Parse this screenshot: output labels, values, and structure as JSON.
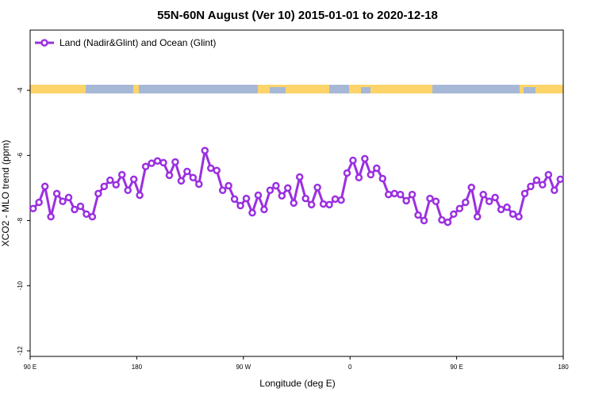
{
  "chart_data": {
    "type": "line",
    "title": "55N-60N August (Ver 10)   2015-01-01 to 2020-12-18",
    "xlabel": "Longitude (deg E)",
    "ylabel": "XCO2 - MLO trend (ppm)",
    "x": [
      92.5,
      97.5,
      102.5,
      107.5,
      112.5,
      117.5,
      122.5,
      127.5,
      132.5,
      137.5,
      142.5,
      147.5,
      152.5,
      157.5,
      162.5,
      167.5,
      172.5,
      177.5,
      182.5,
      187.5,
      192.5,
      197.5,
      202.5,
      207.5,
      212.5,
      217.5,
      222.5,
      227.5,
      232.5,
      237.5,
      242.5,
      247.5,
      252.5,
      257.5,
      262.5,
      267.5,
      272.5,
      277.5,
      282.5,
      287.5,
      292.5,
      297.5,
      302.5,
      307.5,
      312.5,
      317.5,
      322.5,
      327.5,
      332.5,
      337.5,
      342.5,
      347.5,
      352.5,
      357.5,
      362.5,
      367.5,
      372.5,
      377.5,
      382.5,
      387.5,
      392.5,
      397.5,
      402.5,
      407.5,
      412.5,
      417.5,
      422.5,
      427.5,
      432.5,
      437.5,
      442.5,
      447.5,
      452.5,
      457.5,
      462.5,
      467.5,
      472.5,
      477.5,
      482.5,
      487.5,
      492.5,
      497.5,
      502.5,
      507.5,
      512.5,
      517.5,
      522.5,
      527.5,
      532.5,
      537.5
    ],
    "series": [
      {
        "name": "Land (Nadir&Glint) and Ocean (Glint)",
        "color": "#9b30e0",
        "values": [
          -7.63,
          -7.44,
          -6.95,
          -7.88,
          -7.17,
          -7.41,
          -7.29,
          -7.66,
          -7.56,
          -7.8,
          -7.88,
          -7.17,
          -6.95,
          -6.76,
          -6.9,
          -6.59,
          -7.07,
          -6.73,
          -7.22,
          -6.34,
          -6.24,
          -6.17,
          -6.22,
          -6.61,
          -6.2,
          -6.78,
          -6.49,
          -6.68,
          -6.88,
          -5.85,
          -6.39,
          -6.46,
          -7.07,
          -6.93,
          -7.34,
          -7.54,
          -7.32,
          -7.76,
          -7.22,
          -7.66,
          -7.07,
          -6.93,
          -7.24,
          -7.0,
          -7.46,
          -6.66,
          -7.32,
          -7.51,
          -6.98,
          -7.49,
          -7.51,
          -7.34,
          -7.37,
          -6.54,
          -6.15,
          -6.68,
          -6.1,
          -6.59,
          -6.39,
          -6.71,
          -7.2,
          -7.17,
          -7.2,
          -7.39,
          -7.2,
          -7.83,
          -8.0,
          -7.32,
          -7.41,
          -7.98,
          -8.05,
          -7.8,
          -7.63,
          -7.44,
          -6.98,
          -7.88,
          -7.2,
          -7.41,
          -7.29,
          -7.66,
          -7.59,
          -7.8,
          -7.88,
          -7.17,
          -6.95,
          -6.76,
          -6.9,
          -6.59,
          -7.07,
          -6.73
        ]
      }
    ],
    "xlim": [
      90,
      540
    ],
    "xticks": [
      {
        "value": 90,
        "label": "90 E"
      },
      {
        "value": 180,
        "label": "180"
      },
      {
        "value": 270,
        "label": "90 W"
      },
      {
        "value": 360,
        "label": "0"
      },
      {
        "value": 450,
        "label": "90 E"
      },
      {
        "value": 540,
        "label": "180"
      }
    ],
    "ylim": [
      -12.17,
      -2.15
    ],
    "yticks": [
      -12,
      -10,
      -8,
      -6,
      -4
    ],
    "legend": "upper left"
  }
}
